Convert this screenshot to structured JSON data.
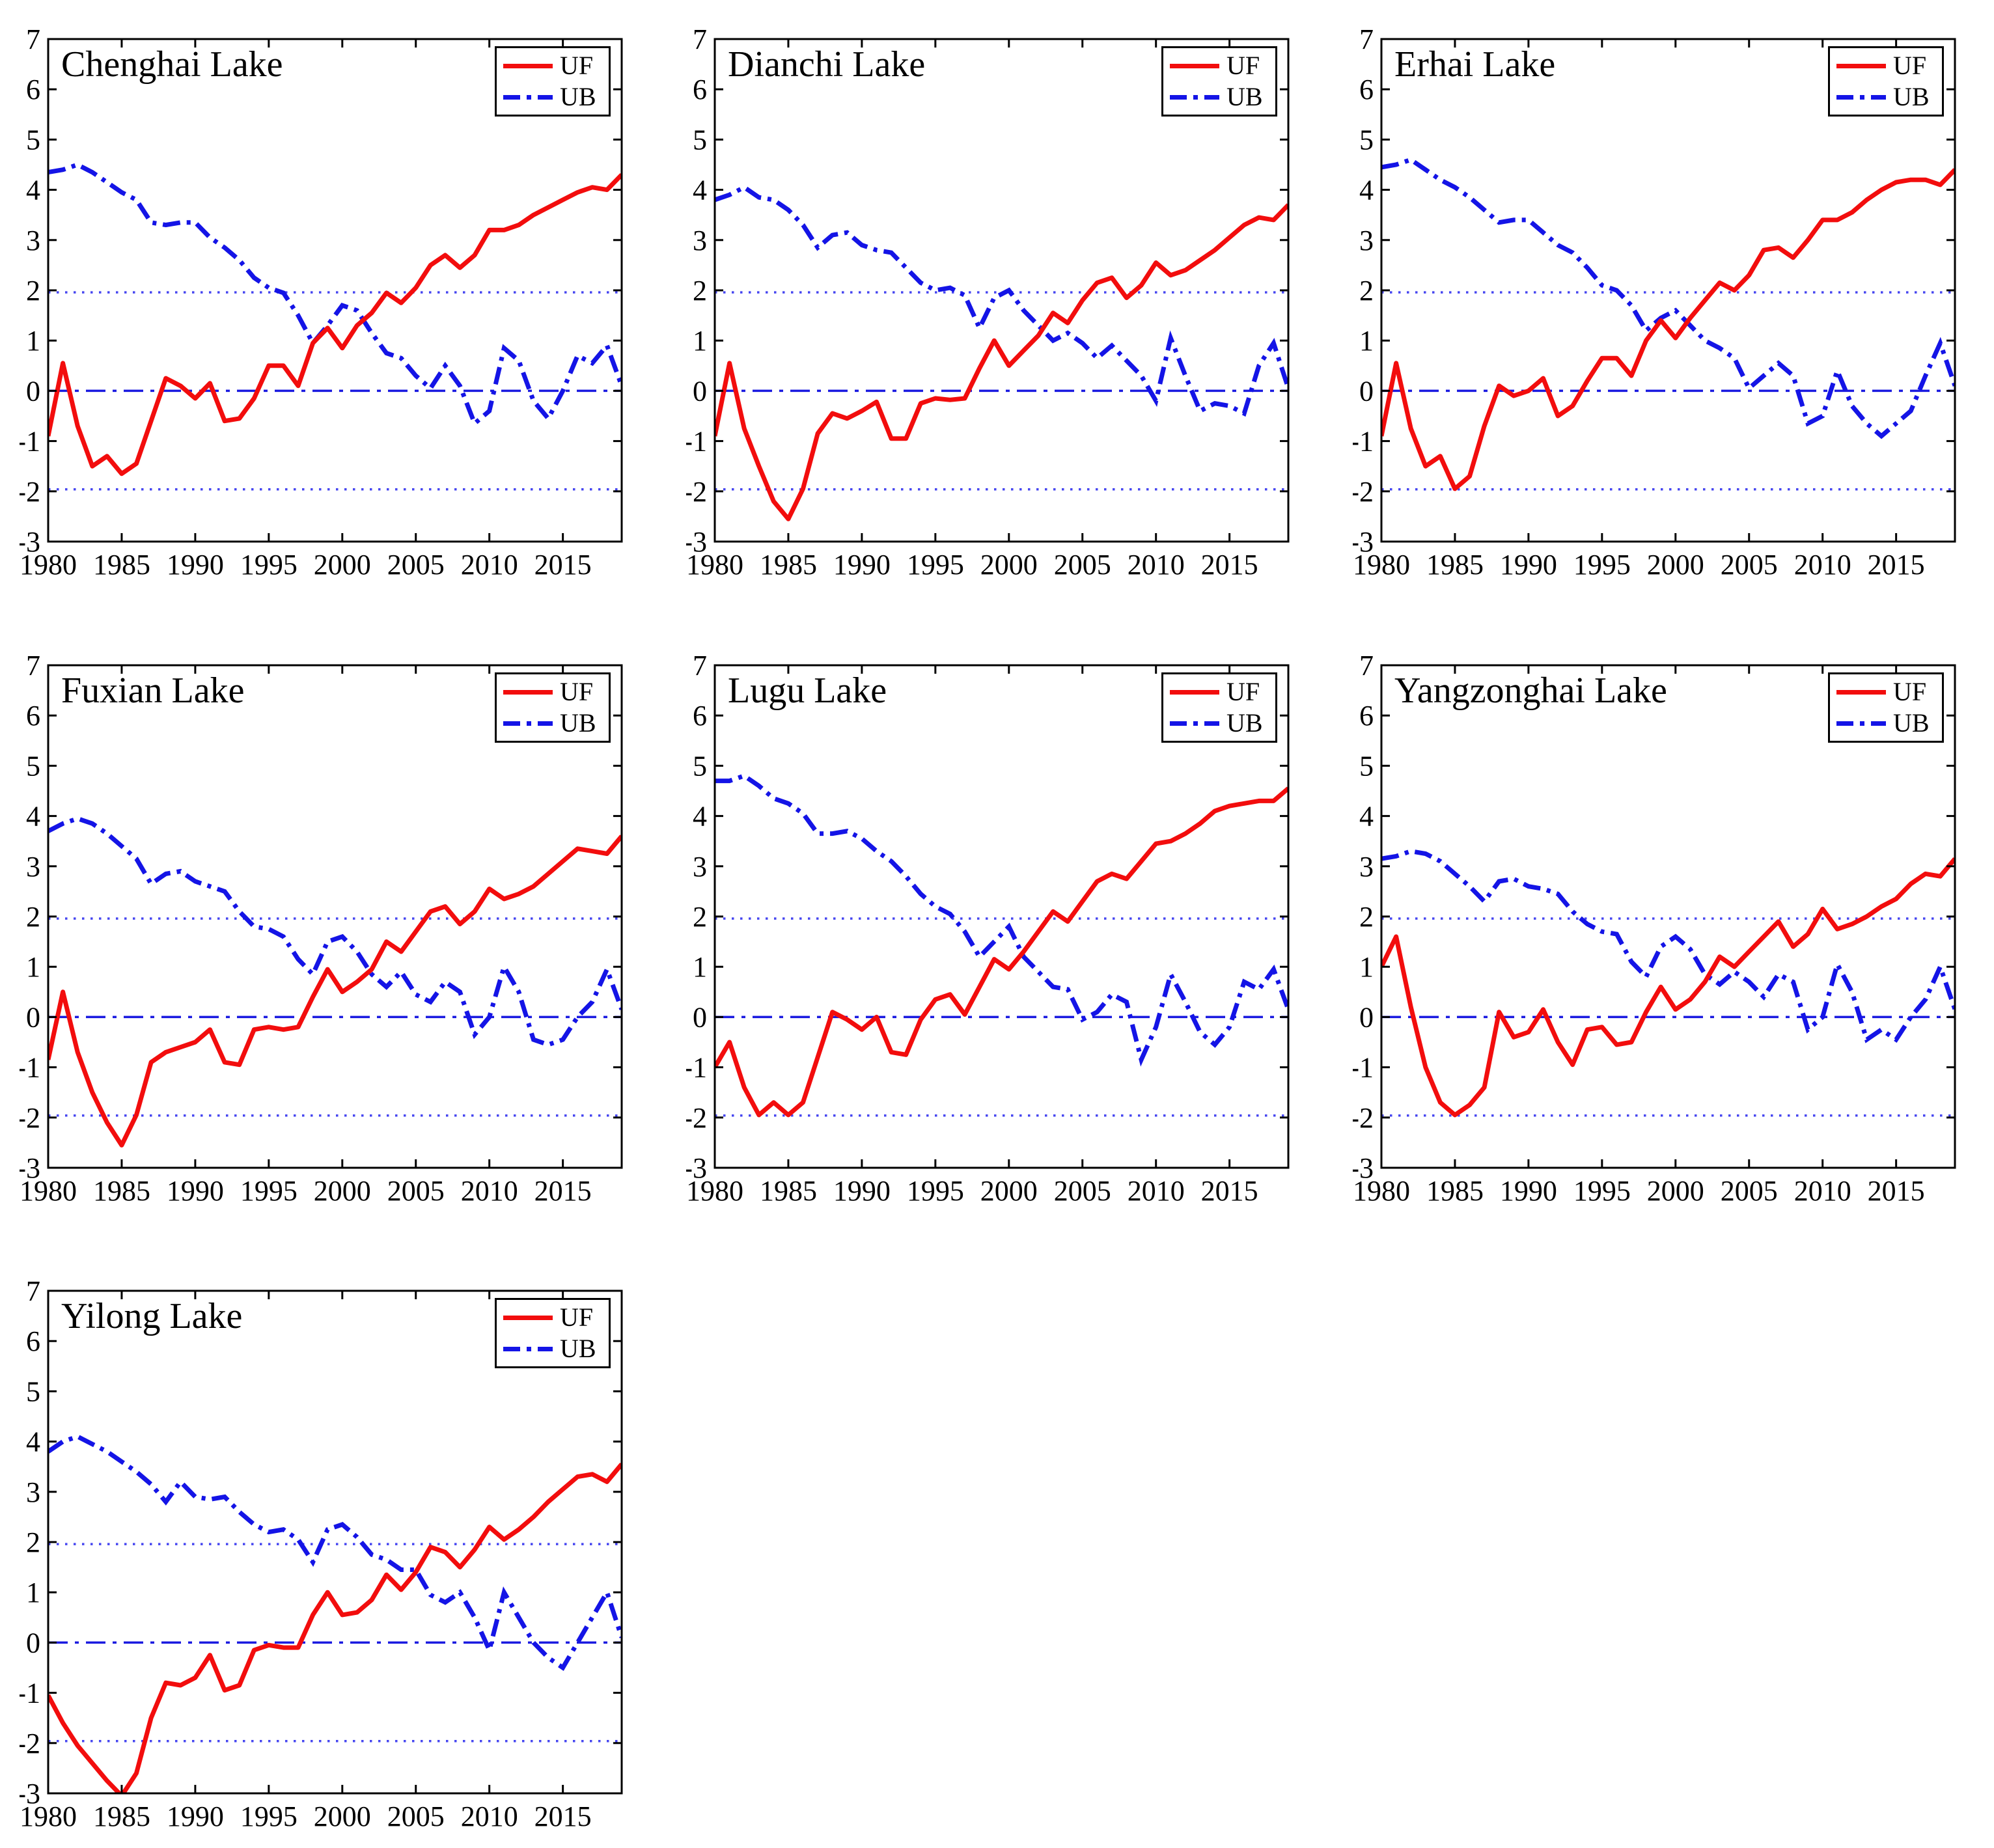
{
  "figure": {
    "description": "Mann-Kendall abrupt change test (UF and UB statistic curves) for seven lakes, 1980-2019",
    "background_color": "#ffffff",
    "grid": {
      "columns": 3,
      "rows": 3,
      "used_cells": 7
    }
  },
  "chart_data": {
    "type": "line",
    "title": "",
    "xlabel": "",
    "ylabel": "",
    "x_years": [
      1980,
      1981,
      1982,
      1983,
      1984,
      1985,
      1986,
      1987,
      1988,
      1989,
      1990,
      1991,
      1992,
      1993,
      1994,
      1995,
      1996,
      1997,
      1998,
      1999,
      2000,
      2001,
      2002,
      2003,
      2004,
      2005,
      2006,
      2007,
      2008,
      2009,
      2010,
      2011,
      2012,
      2013,
      2014,
      2015,
      2016,
      2017,
      2018,
      2019
    ],
    "xlim": [
      1980,
      2019
    ],
    "ylim": [
      -3,
      7
    ],
    "yticks": [
      -3,
      -2,
      -1,
      0,
      1,
      2,
      3,
      4,
      5,
      6,
      7
    ],
    "xticks": [
      1980,
      1985,
      1990,
      1995,
      2000,
      2005,
      2010,
      2015
    ],
    "grid_lines": "off",
    "significance_level_lines": [
      1.96,
      -1.96
    ],
    "zero_line": 0,
    "legend": {
      "position": "top-right",
      "entries": [
        "UF",
        "UB"
      ]
    },
    "colors": {
      "UF": "#f20d0d",
      "UB": "#1414e6",
      "significance_dotted": "#4646f0",
      "zero_dashdot": "#1a1ae0",
      "axis": "#000000"
    },
    "charts": [
      {
        "title": "Chenghai Lake",
        "UF": [
          -0.9,
          0.55,
          -0.7,
          -1.5,
          -1.3,
          -1.65,
          -1.45,
          -0.6,
          0.25,
          0.1,
          -0.15,
          0.15,
          -0.6,
          -0.55,
          -0.15,
          0.5,
          0.5,
          0.1,
          0.95,
          1.25,
          0.85,
          1.3,
          1.55,
          1.95,
          1.75,
          2.05,
          2.5,
          2.7,
          2.45,
          2.7,
          3.2,
          3.2,
          3.3,
          3.5,
          3.65,
          3.8,
          3.95,
          4.05,
          4.0,
          4.3
        ],
        "UB": [
          4.35,
          4.4,
          4.5,
          4.35,
          4.15,
          3.95,
          3.8,
          3.35,
          3.3,
          3.35,
          3.35,
          3.05,
          2.85,
          2.6,
          2.25,
          2.05,
          1.95,
          1.5,
          0.95,
          1.3,
          1.7,
          1.6,
          1.15,
          0.75,
          0.65,
          0.3,
          0.05,
          0.5,
          0.1,
          -0.65,
          -0.4,
          0.85,
          0.6,
          -0.2,
          -0.55,
          0.0,
          0.7,
          0.55,
          0.9,
          0.1
        ]
      },
      {
        "title": "Dianchi Lake",
        "UF": [
          -0.9,
          0.55,
          -0.75,
          -1.5,
          -2.2,
          -2.55,
          -1.95,
          -0.85,
          -0.45,
          -0.55,
          -0.4,
          -0.22,
          -0.95,
          -0.95,
          -0.25,
          -0.15,
          -0.18,
          -0.15,
          0.45,
          1.0,
          0.5,
          0.8,
          1.1,
          1.55,
          1.35,
          1.8,
          2.15,
          2.25,
          1.85,
          2.1,
          2.55,
          2.3,
          2.4,
          2.6,
          2.8,
          3.05,
          3.3,
          3.45,
          3.4,
          3.7
        ],
        "UB": [
          3.8,
          3.9,
          4.05,
          3.85,
          3.8,
          3.6,
          3.3,
          2.85,
          3.1,
          3.15,
          2.9,
          2.8,
          2.75,
          2.45,
          2.15,
          2.0,
          2.05,
          1.9,
          1.25,
          1.85,
          2.0,
          1.6,
          1.3,
          1.0,
          1.15,
          0.95,
          0.65,
          0.9,
          0.6,
          0.3,
          -0.2,
          1.05,
          0.3,
          -0.4,
          -0.25,
          -0.3,
          -0.45,
          0.5,
          0.95,
          0.05
        ]
      },
      {
        "title": "Erhai Lake",
        "UF": [
          -0.9,
          0.55,
          -0.75,
          -1.5,
          -1.3,
          -1.95,
          -1.7,
          -0.7,
          0.1,
          -0.1,
          0.0,
          0.25,
          -0.5,
          -0.3,
          0.2,
          0.65,
          0.65,
          0.3,
          1.0,
          1.4,
          1.05,
          1.45,
          1.8,
          2.15,
          2.0,
          2.3,
          2.8,
          2.85,
          2.65,
          3.0,
          3.4,
          3.4,
          3.55,
          3.8,
          4.0,
          4.15,
          4.2,
          4.2,
          4.1,
          4.4
        ],
        "UB": [
          4.45,
          4.5,
          4.6,
          4.4,
          4.2,
          4.05,
          3.85,
          3.6,
          3.35,
          3.4,
          3.4,
          3.15,
          2.9,
          2.75,
          2.45,
          2.1,
          2.0,
          1.7,
          1.2,
          1.45,
          1.6,
          1.3,
          1.0,
          0.85,
          0.65,
          0.05,
          0.3,
          0.55,
          0.3,
          -0.65,
          -0.5,
          0.4,
          -0.3,
          -0.65,
          -0.9,
          -0.65,
          -0.4,
          0.3,
          0.95,
          0.1
        ]
      },
      {
        "title": "Fuxian Lake",
        "UF": [
          -0.85,
          0.5,
          -0.7,
          -1.5,
          -2.1,
          -2.55,
          -1.95,
          -0.9,
          -0.7,
          -0.6,
          -0.5,
          -0.25,
          -0.9,
          -0.95,
          -0.25,
          -0.2,
          -0.25,
          -0.2,
          0.4,
          0.95,
          0.5,
          0.7,
          0.95,
          1.5,
          1.3,
          1.7,
          2.1,
          2.2,
          1.85,
          2.1,
          2.55,
          2.35,
          2.45,
          2.6,
          2.85,
          3.1,
          3.35,
          3.3,
          3.25,
          3.6
        ],
        "UB": [
          3.7,
          3.85,
          3.95,
          3.85,
          3.65,
          3.4,
          3.15,
          2.65,
          2.85,
          2.9,
          2.7,
          2.6,
          2.5,
          2.1,
          1.8,
          1.75,
          1.6,
          1.15,
          0.85,
          1.5,
          1.6,
          1.3,
          0.85,
          0.6,
          0.9,
          0.45,
          0.3,
          0.7,
          0.5,
          -0.35,
          0.0,
          1.0,
          0.5,
          -0.45,
          -0.55,
          -0.45,
          0.0,
          0.3,
          0.95,
          0.15
        ]
      },
      {
        "title": "Lugu Lake",
        "UF": [
          -1.0,
          -0.5,
          -1.4,
          -1.95,
          -1.7,
          -1.95,
          -1.7,
          -0.8,
          0.1,
          -0.05,
          -0.25,
          0.0,
          -0.7,
          -0.75,
          -0.05,
          0.35,
          0.45,
          0.05,
          0.6,
          1.15,
          0.95,
          1.3,
          1.7,
          2.1,
          1.9,
          2.3,
          2.7,
          2.85,
          2.75,
          3.1,
          3.45,
          3.5,
          3.65,
          3.85,
          4.1,
          4.2,
          4.25,
          4.3,
          4.3,
          4.55
        ],
        "UB": [
          4.7,
          4.7,
          4.8,
          4.6,
          4.35,
          4.25,
          4.05,
          3.65,
          3.65,
          3.7,
          3.55,
          3.3,
          3.1,
          2.8,
          2.45,
          2.2,
          2.05,
          1.7,
          1.2,
          1.5,
          1.8,
          1.2,
          0.9,
          0.6,
          0.55,
          -0.05,
          0.1,
          0.45,
          0.3,
          -0.85,
          -0.2,
          0.85,
          0.3,
          -0.3,
          -0.55,
          -0.2,
          0.7,
          0.55,
          0.95,
          0.15
        ]
      },
      {
        "title": "Yangzonghai Lake",
        "UF": [
          1.0,
          1.6,
          0.2,
          -1.0,
          -1.7,
          -1.95,
          -1.75,
          -1.4,
          0.1,
          -0.4,
          -0.3,
          0.15,
          -0.5,
          -0.95,
          -0.25,
          -0.2,
          -0.55,
          -0.5,
          0.1,
          0.6,
          0.15,
          0.35,
          0.7,
          1.2,
          1.0,
          1.3,
          1.6,
          1.9,
          1.4,
          1.65,
          2.15,
          1.75,
          1.85,
          2.0,
          2.2,
          2.35,
          2.65,
          2.85,
          2.8,
          3.15
        ],
        "UB": [
          3.15,
          3.2,
          3.3,
          3.25,
          3.1,
          2.85,
          2.6,
          2.3,
          2.7,
          2.75,
          2.6,
          2.55,
          2.45,
          2.1,
          1.85,
          1.7,
          1.65,
          1.1,
          0.8,
          1.4,
          1.6,
          1.35,
          0.85,
          0.65,
          0.9,
          0.7,
          0.4,
          0.85,
          0.7,
          -0.25,
          0.0,
          1.05,
          0.5,
          -0.45,
          -0.25,
          -0.45,
          0.0,
          0.35,
          1.0,
          0.15
        ]
      },
      {
        "title": "Yilong Lake",
        "UF": [
          -1.05,
          -1.6,
          -2.05,
          -2.4,
          -2.75,
          -3.05,
          -2.6,
          -1.5,
          -0.8,
          -0.85,
          -0.7,
          -0.25,
          -0.95,
          -0.85,
          -0.15,
          -0.05,
          -0.1,
          -0.1,
          0.55,
          1.0,
          0.55,
          0.6,
          0.85,
          1.35,
          1.05,
          1.4,
          1.9,
          1.8,
          1.5,
          1.85,
          2.3,
          2.05,
          2.25,
          2.5,
          2.8,
          3.05,
          3.3,
          3.35,
          3.2,
          3.55
        ],
        "UB": [
          3.8,
          4.0,
          4.1,
          3.95,
          3.8,
          3.6,
          3.4,
          3.15,
          2.8,
          3.2,
          2.9,
          2.85,
          2.9,
          2.6,
          2.35,
          2.2,
          2.25,
          2.05,
          1.6,
          2.25,
          2.35,
          2.1,
          1.75,
          1.65,
          1.45,
          1.45,
          0.95,
          0.8,
          1.0,
          0.5,
          -0.15,
          1.0,
          0.5,
          0.0,
          -0.3,
          -0.5,
          0.0,
          0.5,
          1.0,
          0.1
        ]
      }
    ]
  }
}
